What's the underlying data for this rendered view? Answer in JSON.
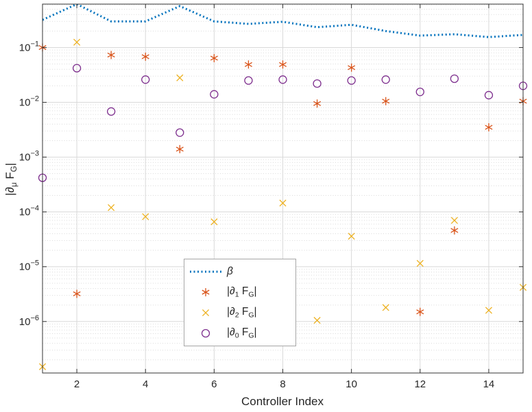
{
  "chart_data": {
    "type": "line",
    "xlabel": "Controller Index",
    "ylabel": "|∂_μ F_G|",
    "ylabel_runs": [
      {
        "t": "|∂"
      },
      {
        "t": "μ",
        "sub": true
      },
      {
        "t": " F"
      },
      {
        "t": "G",
        "sub": true
      },
      {
        "t": "|"
      }
    ],
    "xlim": [
      1,
      15
    ],
    "ylim": [
      1.15e-07,
      0.62
    ],
    "x_ticks": [
      2,
      4,
      6,
      8,
      10,
      12,
      14
    ],
    "y_tick_exponents": [
      -1,
      -2,
      -3,
      -4,
      -5,
      -6
    ],
    "y_scale": "log",
    "grid": true,
    "minor_grid": true,
    "legend_position": "inside-bottom-center",
    "x": [
      1,
      2,
      3,
      4,
      5,
      6,
      7,
      8,
      9,
      10,
      11,
      12,
      13,
      14,
      15
    ],
    "series": [
      {
        "id": "beta",
        "type": "line",
        "style": "dotted",
        "color": "#0072BD",
        "linewidth": 3,
        "label_runs": [
          {
            "t": "β",
            "i": true
          }
        ],
        "values": [
          0.32,
          0.62,
          0.3,
          0.3,
          0.57,
          0.3,
          0.27,
          0.295,
          0.235,
          0.26,
          0.2,
          0.165,
          0.175,
          0.155,
          0.17
        ]
      },
      {
        "id": "d1",
        "type": "marker",
        "marker": "asterisk",
        "color": "#D95319",
        "label_runs": [
          {
            "t": "|∂"
          },
          {
            "t": "1",
            "sub": true
          },
          {
            "t": " F"
          },
          {
            "t": "G",
            "sub": true
          },
          {
            "t": "|"
          }
        ],
        "values": [
          0.1,
          3.2e-06,
          0.073,
          0.068,
          0.0014,
          0.064,
          0.049,
          0.049,
          0.0095,
          0.043,
          0.0105,
          1.5e-06,
          4.6e-05,
          0.0035,
          0.0105
        ]
      },
      {
        "id": "d2",
        "type": "marker",
        "marker": "x",
        "color": "#EDB120",
        "label_runs": [
          {
            "t": "|∂"
          },
          {
            "t": "2",
            "sub": true
          },
          {
            "t": " F"
          },
          {
            "t": "G",
            "sub": true
          },
          {
            "t": "|"
          }
        ],
        "values": [
          1.5e-07,
          0.125,
          0.00012,
          8.2e-05,
          0.028,
          6.6e-05,
          null,
          0.000145,
          1.05e-06,
          3.6e-05,
          1.8e-06,
          1.15e-05,
          7e-05,
          1.6e-06,
          4.2e-06
        ]
      },
      {
        "id": "d0",
        "type": "marker",
        "marker": "circle",
        "color": "#7E2F8E",
        "label_runs": [
          {
            "t": "|∂"
          },
          {
            "t": "0",
            "sub": true
          },
          {
            "t": " F"
          },
          {
            "t": "G",
            "sub": true
          },
          {
            "t": "|"
          }
        ],
        "values": [
          0.00042,
          0.042,
          0.0068,
          0.026,
          0.0028,
          0.014,
          0.025,
          0.026,
          0.022,
          0.025,
          0.026,
          0.0155,
          0.027,
          0.0135,
          0.02
        ]
      }
    ]
  }
}
